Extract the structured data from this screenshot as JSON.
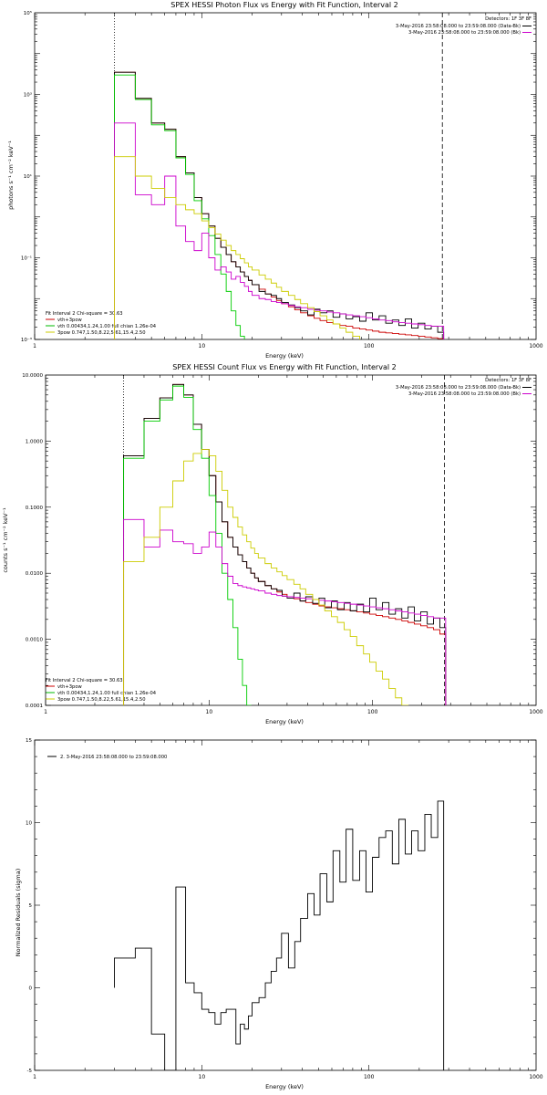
{
  "chart_data": [
    {
      "type": "line",
      "title": "SPEX HESSI Photon Flux vs Energy with Fit Function, Interval 2",
      "xlabel": "Energy (keV)",
      "ylabel": "photons s⁻¹ cm⁻² keV⁻¹",
      "xscale": "log",
      "yscale": "log",
      "xlim": [
        1,
        1000
      ],
      "ylim": [
        0.001,
        100000
      ],
      "xticks": [
        {
          "v": 1,
          "label": "1"
        },
        {
          "v": 10,
          "label": "10"
        },
        {
          "v": 100,
          "label": "100"
        },
        {
          "v": 1000,
          "label": "1000"
        }
      ],
      "yticks": [
        {
          "v": 0.001,
          "label": "10⁻³"
        },
        {
          "v": 0.1,
          "label": "10⁻¹"
        },
        {
          "v": 10,
          "label": "10¹"
        },
        {
          "v": 1000,
          "label": "10³"
        },
        {
          "v": 100000,
          "label": "10⁵"
        }
      ],
      "top_right": [
        {
          "text": "Detectors: 1F 3F 8F",
          "color": ""
        },
        {
          "text": "3-May-2016 23:58:08.000 to 23:59:08.000 (Data-Bk)",
          "color": "#000000"
        },
        {
          "text": "3-May-2016 23:58:08.000 to 23:59:08.000 (Bk)",
          "color": "#cc00cc"
        }
      ],
      "fit_info": "Fit Interval 2   Chi-square = 30.63",
      "legend": [
        {
          "text": "vth+3pow",
          "color": "#cc0000"
        },
        {
          "text": "vth 0.00434,1.24,1.00  full chian 1.26e-04",
          "color": "#00bb00"
        },
        {
          "text": "3pow 0.747,1.50,8.22,5.61,15.4,2.50",
          "color": "#cccc00"
        }
      ],
      "vlines": [
        {
          "x": 3,
          "style": "dotted"
        },
        {
          "x": 275,
          "style": "dashed"
        }
      ],
      "edges": [
        3,
        4,
        5,
        6,
        7,
        8,
        9,
        10,
        11,
        12,
        13,
        14,
        15,
        16,
        17,
        18,
        19,
        20,
        22,
        24,
        26,
        28,
        30,
        33,
        36,
        39,
        43,
        47,
        51,
        56,
        61,
        67,
        73,
        80,
        88,
        96,
        105,
        115,
        126,
        138,
        151,
        165,
        180,
        197,
        216,
        236,
        258,
        280
      ],
      "series": [
        {
          "name": "",
          "color": "#cc0000",
          "values": [
            3500,
            800,
            200,
            140,
            30,
            12,
            3,
            1.2,
            0.6,
            0.3,
            0.18,
            0.12,
            0.08,
            0.06,
            0.045,
            0.035,
            0.028,
            0.022,
            0.017,
            0.013,
            0.011,
            0.009,
            0.0075,
            0.0063,
            0.0053,
            0.0045,
            0.0038,
            0.0033,
            0.0029,
            0.0026,
            0.0024,
            0.0022,
            0.0021,
            0.0019,
            0.0018,
            0.0017,
            0.0016,
            0.0015,
            0.00145,
            0.0014,
            0.00135,
            0.0013,
            0.00125,
            0.0012,
            0.00115,
            0.0011,
            0.00105
          ]
        },
        {
          "name": "",
          "color": "#000000",
          "values": [
            3500,
            800,
            200,
            140,
            30,
            12,
            3,
            1.2,
            0.6,
            0.3,
            0.18,
            0.12,
            0.08,
            0.06,
            0.045,
            0.035,
            0.028,
            0.022,
            0.015,
            0.013,
            0.012,
            0.01,
            0.008,
            0.007,
            0.006,
            0.005,
            0.004,
            0.0055,
            0.0045,
            0.005,
            0.0035,
            0.0042,
            0.0032,
            0.0036,
            0.0028,
            0.0045,
            0.003,
            0.0038,
            0.0025,
            0.003,
            0.0022,
            0.0032,
            0.0019,
            0.0025,
            0.0018,
            0.0021,
            0.0015
          ]
        },
        {
          "name": "",
          "color": "#00cc00",
          "values": [
            3000,
            750,
            180,
            130,
            28,
            11,
            2.5,
            0.9,
            0.35,
            0.12,
            0.04,
            0.015,
            0.005,
            0.0022,
            0.0012
          ]
        },
        {
          "name": "",
          "color": "#cc00cc",
          "values": [
            200,
            3.5,
            2,
            10,
            0.6,
            0.25,
            0.15,
            0.4,
            0.1,
            0.05,
            0.06,
            0.045,
            0.03,
            0.035,
            0.025,
            0.02,
            0.015,
            0.012,
            0.01,
            0.0095,
            0.0085,
            0.008,
            0.0075,
            0.0068,
            0.0063,
            0.006,
            0.0055,
            0.0052,
            0.005,
            0.0047,
            0.0045,
            0.0042,
            0.004,
            0.0038,
            0.0036,
            0.0034,
            0.0032,
            0.003,
            0.0029,
            0.0027,
            0.0026,
            0.0025,
            0.0024,
            0.0023,
            0.0022,
            0.0021,
            0.0021
          ]
        },
        {
          "name": "",
          "color": "#cccc00",
          "values": [
            30,
            10,
            5,
            3,
            2,
            1.5,
            1.2,
            0.8,
            0.55,
            0.38,
            0.27,
            0.2,
            0.15,
            0.12,
            0.095,
            0.075,
            0.06,
            0.05,
            0.038,
            0.03,
            0.024,
            0.019,
            0.015,
            0.012,
            0.0095,
            0.0075,
            0.006,
            0.0048,
            0.0038,
            0.003,
            0.0024,
            0.0019,
            0.0015,
            0.0012,
            0.00095
          ]
        }
      ]
    },
    {
      "type": "line",
      "title": "SPEX HESSI Count Flux vs Energy with Fit Function, Interval 2",
      "xlabel": "Energy (keV)",
      "ylabel": "counts s⁻¹ cm⁻² keV⁻¹",
      "xscale": "log",
      "yscale": "log",
      "xlim": [
        1,
        1000
      ],
      "ylim": [
        0.0001,
        10
      ],
      "xticks": [
        {
          "v": 1,
          "label": "1"
        },
        {
          "v": 10,
          "label": "10"
        },
        {
          "v": 100,
          "label": "100"
        },
        {
          "v": 1000,
          "label": "1000"
        }
      ],
      "yticks": [
        {
          "v": 0.0001,
          "label": "0.0001"
        },
        {
          "v": 0.001,
          "label": "0.0010"
        },
        {
          "v": 0.01,
          "label": "0.0100"
        },
        {
          "v": 0.1,
          "label": "0.1000"
        },
        {
          "v": 1,
          "label": "1.0000"
        },
        {
          "v": 10,
          "label": "10.0000"
        }
      ],
      "top_right": [
        {
          "text": "Detectors: 1F 3F 8F",
          "color": ""
        },
        {
          "text": "3-May-2016 23:58:08.000 to 23:59:08.000 (Data-Bk)",
          "color": "#000000"
        },
        {
          "text": "3-May-2016 23:58:08.000 to 23:59:08.000 (Bk)",
          "color": "#cc00cc"
        }
      ],
      "fit_info": "Fit Interval 2   Chi-square = 30.63",
      "legend": [
        {
          "text": "vth+3pow",
          "color": "#cc0000"
        },
        {
          "text": "vth 0.00434,1.24,1.00  full chian 1.26e-04",
          "color": "#00bb00"
        },
        {
          "text": "3pow 0.747,1.50,8.22,5.61,15.4,2.50",
          "color": "#cccc00"
        }
      ],
      "vlines": [
        {
          "x": 3,
          "style": "dotted"
        },
        {
          "x": 275,
          "style": "dashed"
        }
      ],
      "edges": [
        3,
        4,
        5,
        6,
        7,
        8,
        9,
        10,
        11,
        12,
        13,
        14,
        15,
        16,
        17,
        18,
        19,
        20,
        22,
        24,
        26,
        28,
        30,
        33,
        36,
        39,
        43,
        47,
        51,
        56,
        61,
        67,
        73,
        80,
        88,
        96,
        105,
        115,
        126,
        138,
        151,
        165,
        180,
        197,
        216,
        236,
        258,
        280
      ],
      "series": [
        {
          "name": "",
          "color": "#cc0000",
          "values": [
            0.6,
            2.2,
            4.5,
            7.2,
            5,
            1.8,
            0.75,
            0.3,
            0.12,
            0.06,
            0.035,
            0.025,
            0.019,
            0.015,
            0.012,
            0.01,
            0.0085,
            0.0075,
            0.0065,
            0.0058,
            0.0052,
            0.0048,
            0.0044,
            0.0041,
            0.0038,
            0.0036,
            0.0034,
            0.0032,
            0.0031,
            0.003,
            0.0029,
            0.0028,
            0.0027,
            0.0026,
            0.0025,
            0.0024,
            0.0023,
            0.0022,
            0.0021,
            0.002,
            0.0019,
            0.0018,
            0.0017,
            0.0016,
            0.0015,
            0.0014,
            0.0012
          ]
        },
        {
          "name": "",
          "color": "#000000",
          "values": [
            0.6,
            2.2,
            4.5,
            7.2,
            5,
            1.8,
            0.75,
            0.3,
            0.12,
            0.06,
            0.035,
            0.025,
            0.019,
            0.015,
            0.012,
            0.01,
            0.0085,
            0.0075,
            0.0065,
            0.0058,
            0.0055,
            0.0045,
            0.0042,
            0.005,
            0.0038,
            0.0044,
            0.0035,
            0.0042,
            0.003,
            0.0038,
            0.0028,
            0.0036,
            0.0027,
            0.0034,
            0.0026,
            0.0042,
            0.0028,
            0.0036,
            0.0024,
            0.0029,
            0.0021,
            0.0031,
            0.0019,
            0.0026,
            0.0017,
            0.0021,
            0.0015
          ]
        },
        {
          "name": "",
          "color": "#00cc00",
          "values": [
            0.55,
            2,
            4.2,
            6.8,
            4.6,
            1.5,
            0.55,
            0.15,
            0.04,
            0.01,
            0.004,
            0.0015,
            0.0005,
            0.0002,
            0.0001
          ]
        },
        {
          "name": "",
          "color": "#cc00cc",
          "values": [
            0.065,
            0.025,
            0.045,
            0.03,
            0.028,
            0.02,
            0.025,
            0.042,
            0.025,
            0.014,
            0.009,
            0.007,
            0.0065,
            0.0062,
            0.006,
            0.0058,
            0.0056,
            0.0054,
            0.005,
            0.0048,
            0.0046,
            0.0045,
            0.0044,
            0.0043,
            0.0042,
            0.0041,
            0.004,
            0.0039,
            0.0038,
            0.0037,
            0.0036,
            0.0035,
            0.0034,
            0.0033,
            0.0032,
            0.0031,
            0.003,
            0.0029,
            0.0028,
            0.0027,
            0.0026,
            0.0025,
            0.0024,
            0.0023,
            0.0022,
            0.0021,
            0.0021
          ]
        },
        {
          "name": "",
          "color": "#cccc00",
          "values": [
            0.015,
            0.035,
            0.1,
            0.25,
            0.5,
            0.65,
            0.75,
            0.6,
            0.35,
            0.18,
            0.1,
            0.07,
            0.05,
            0.038,
            0.03,
            0.024,
            0.02,
            0.017,
            0.014,
            0.012,
            0.0105,
            0.0092,
            0.008,
            0.0068,
            0.0058,
            0.0048,
            0.004,
            0.0033,
            0.0027,
            0.0022,
            0.0018,
            0.0014,
            0.0011,
            0.0008,
            0.0006,
            0.00045,
            0.00033,
            0.00025,
            0.00018,
            0.00013,
            0.0001
          ]
        }
      ]
    },
    {
      "type": "line",
      "title": "",
      "xlabel": "Energy (keV)",
      "ylabel": "Normalized Residuals (sigma)",
      "xscale": "log",
      "yscale": "linear",
      "xlim": [
        1,
        1000
      ],
      "ylim": [
        -5,
        15
      ],
      "xticks": [
        {
          "v": 1,
          "label": "1"
        },
        {
          "v": 10,
          "label": "10"
        },
        {
          "v": 100,
          "label": "100"
        },
        {
          "v": 1000,
          "label": "1000"
        }
      ],
      "yticks": [
        {
          "v": -5,
          "label": "-5"
        },
        {
          "v": 0,
          "label": "0"
        },
        {
          "v": 5,
          "label": "5"
        },
        {
          "v": 10,
          "label": "10"
        },
        {
          "v": 15,
          "label": "15"
        }
      ],
      "legend": [
        {
          "text": "2. 3-May-2016 23:58:08.000 to 23:59:08.000",
          "color": "#000000"
        }
      ],
      "edges": [
        3,
        4,
        5,
        6,
        7,
        8,
        9,
        10,
        11,
        12,
        13,
        14,
        15,
        16,
        17,
        18,
        19,
        20,
        22,
        24,
        26,
        28,
        30,
        33,
        36,
        39,
        43,
        47,
        51,
        56,
        61,
        67,
        73,
        80,
        88,
        96,
        105,
        115,
        126,
        138,
        151,
        165,
        180,
        197,
        216,
        236,
        258,
        280
      ],
      "series": [
        {
          "name": "",
          "color": "#000000",
          "values": [
            1.8,
            2.4,
            -2.8,
            -5,
            6.1,
            0.3,
            -0.3,
            -1.3,
            -1.5,
            -2.2,
            -1.5,
            -1.3,
            -1.3,
            -3.4,
            -2.2,
            -2.5,
            -1.7,
            -0.9,
            -0.6,
            0.3,
            1,
            1.8,
            3.3,
            1.2,
            2.8,
            4.2,
            5.7,
            4.4,
            6.9,
            5.2,
            8.3,
            6.4,
            9.6,
            6.5,
            8.3,
            5.8,
            7.9,
            9.1,
            9.5,
            7.5,
            10.2,
            8.1,
            9.5,
            8.3,
            10.5,
            9.1,
            11.3
          ]
        }
      ]
    }
  ]
}
